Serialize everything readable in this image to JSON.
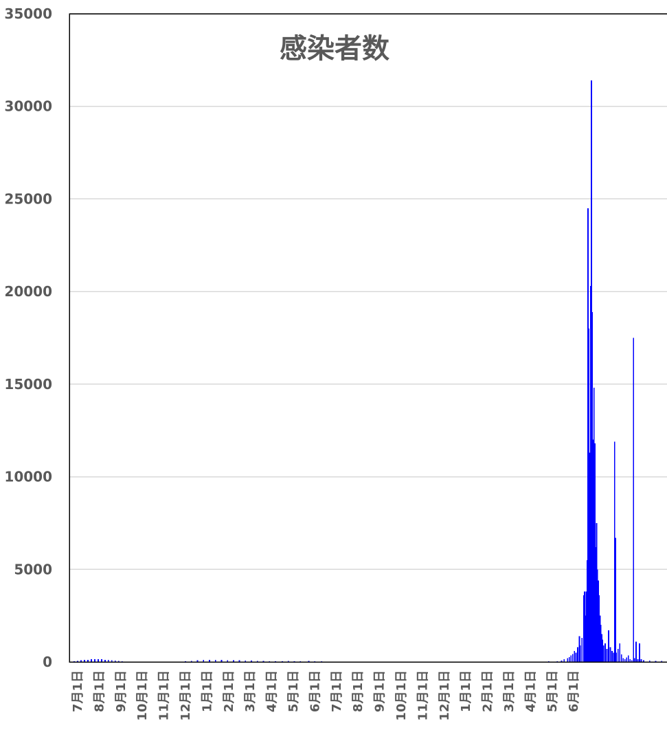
{
  "chart_data": {
    "type": "bar",
    "title": "感染者数",
    "xlabel": "",
    "ylabel": "",
    "ylim": [
      0,
      35000
    ],
    "grid": true,
    "legend": "none",
    "bar_color": "#0000ff",
    "gridline_color": "#d9d9d9",
    "text_color": "#595959",
    "y_ticks": [
      0,
      5000,
      10000,
      15000,
      20000,
      25000,
      30000,
      35000
    ],
    "y_tick_labels": [
      "0",
      "5000",
      "10000",
      "15000",
      "20000",
      "25000",
      "30000",
      "35000"
    ],
    "x_tick_labels": [
      "7月1日",
      "8月1日",
      "9月1日",
      "10月1日",
      "11月1日",
      "12月1日",
      "1月1日",
      "2月1日",
      "3月1日",
      "4月1日",
      "5月1日",
      "6月1日",
      "7月1日",
      "8月1日",
      "9月1日",
      "10月1日",
      "11月1日",
      "12月1日",
      "1月1日",
      "2月1日",
      "3月1日",
      "4月1日",
      "5月1日",
      "6月1日"
    ],
    "x_start": "2020-07-01",
    "x_end": "2022-06-10",
    "series": [
      {
        "points": [
          [
            "2020-07-01",
            20
          ],
          [
            "2020-07-05",
            40
          ],
          [
            "2020-07-09",
            60
          ],
          [
            "2020-07-13",
            90
          ],
          [
            "2020-07-17",
            110
          ],
          [
            "2020-07-21",
            120
          ],
          [
            "2020-07-25",
            140
          ],
          [
            "2020-07-29",
            150
          ],
          [
            "2020-08-02",
            150
          ],
          [
            "2020-08-06",
            140
          ],
          [
            "2020-08-10",
            120
          ],
          [
            "2020-08-14",
            110
          ],
          [
            "2020-08-18",
            90
          ],
          [
            "2020-08-22",
            70
          ],
          [
            "2020-08-26",
            50
          ],
          [
            "2020-08-30",
            40
          ],
          [
            "2020-09-05",
            25
          ],
          [
            "2020-09-15",
            20
          ],
          [
            "2020-09-25",
            15
          ],
          [
            "2020-10-05",
            15
          ],
          [
            "2020-10-15",
            10
          ],
          [
            "2020-10-25",
            10
          ],
          [
            "2020-11-05",
            15
          ],
          [
            "2020-11-12",
            30
          ],
          [
            "2020-11-19",
            60
          ],
          [
            "2020-11-26",
            90
          ],
          [
            "2020-12-03",
            110
          ],
          [
            "2020-12-10",
            120
          ],
          [
            "2020-12-17",
            120
          ],
          [
            "2020-12-24",
            110
          ],
          [
            "2020-12-31",
            100
          ],
          [
            "2021-01-07",
            100
          ],
          [
            "2021-01-14",
            90
          ],
          [
            "2021-01-21",
            80
          ],
          [
            "2021-01-28",
            70
          ],
          [
            "2021-02-04",
            60
          ],
          [
            "2021-02-11",
            50
          ],
          [
            "2021-02-18",
            40
          ],
          [
            "2021-02-25",
            30
          ],
          [
            "2021-03-05",
            40
          ],
          [
            "2021-03-12",
            50
          ],
          [
            "2021-03-19",
            45
          ],
          [
            "2021-03-26",
            30
          ],
          [
            "2021-04-05",
            50
          ],
          [
            "2021-04-12",
            40
          ],
          [
            "2021-04-20",
            30
          ],
          [
            "2021-05-01",
            15
          ],
          [
            "2021-05-15",
            10
          ],
          [
            "2021-06-01",
            5
          ],
          [
            "2021-07-01",
            5
          ],
          [
            "2021-08-01",
            5
          ],
          [
            "2021-09-01",
            5
          ],
          [
            "2021-10-01",
            0
          ],
          [
            "2021-11-01",
            0
          ],
          [
            "2021-12-01",
            5
          ],
          [
            "2021-12-20",
            10
          ],
          [
            "2022-01-01",
            15
          ],
          [
            "2022-01-10",
            40
          ],
          [
            "2022-01-20",
            30
          ],
          [
            "2022-01-25",
            80
          ],
          [
            "2022-01-28",
            150
          ],
          [
            "2022-02-01",
            200
          ],
          [
            "2022-02-03",
            260
          ],
          [
            "2022-02-05",
            350
          ],
          [
            "2022-02-07",
            420
          ],
          [
            "2022-02-09",
            600
          ],
          [
            "2022-02-11",
            500
          ],
          [
            "2022-02-13",
            800
          ],
          [
            "2022-02-15",
            1400
          ],
          [
            "2022-02-16",
            900
          ],
          [
            "2022-02-18",
            1300
          ],
          [
            "2022-02-20",
            3600
          ],
          [
            "2022-02-21",
            3800
          ],
          [
            "2022-02-22",
            2500
          ],
          [
            "2022-02-23",
            3800
          ],
          [
            "2022-02-24",
            5500
          ],
          [
            "2022-02-25",
            24500
          ],
          [
            "2022-02-26",
            18000
          ],
          [
            "2022-02-27",
            11300
          ],
          [
            "2022-02-28",
            20300
          ],
          [
            "2022-03-01",
            31400
          ],
          [
            "2022-03-02",
            18900
          ],
          [
            "2022-03-03",
            12000
          ],
          [
            "2022-03-04",
            14800
          ],
          [
            "2022-03-05",
            11800
          ],
          [
            "2022-03-06",
            6200
          ],
          [
            "2022-03-07",
            7500
          ],
          [
            "2022-03-08",
            5000
          ],
          [
            "2022-03-09",
            4400
          ],
          [
            "2022-03-10",
            3600
          ],
          [
            "2022-03-11",
            2500
          ],
          [
            "2022-03-12",
            2000
          ],
          [
            "2022-03-13",
            1500
          ],
          [
            "2022-03-14",
            1200
          ],
          [
            "2022-03-15",
            900
          ],
          [
            "2022-03-17",
            1000
          ],
          [
            "2022-03-19",
            700
          ],
          [
            "2022-03-21",
            1700
          ],
          [
            "2022-03-23",
            800
          ],
          [
            "2022-03-25",
            600
          ],
          [
            "2022-03-27",
            500
          ],
          [
            "2022-03-28",
            11900
          ],
          [
            "2022-03-29",
            6700
          ],
          [
            "2022-03-30",
            500
          ],
          [
            "2022-04-01",
            700
          ],
          [
            "2022-04-03",
            1000
          ],
          [
            "2022-04-05",
            400
          ],
          [
            "2022-04-07",
            200
          ],
          [
            "2022-04-09",
            150
          ],
          [
            "2022-04-11",
            250
          ],
          [
            "2022-04-13",
            350
          ],
          [
            "2022-04-15",
            150
          ],
          [
            "2022-04-17",
            100
          ],
          [
            "2022-04-19",
            17500
          ],
          [
            "2022-04-20",
            200
          ],
          [
            "2022-04-22",
            1100
          ],
          [
            "2022-04-24",
            150
          ],
          [
            "2022-04-26",
            1000
          ],
          [
            "2022-04-28",
            150
          ],
          [
            "2022-05-01",
            100
          ],
          [
            "2022-05-08",
            80
          ],
          [
            "2022-05-15",
            60
          ],
          [
            "2022-05-22",
            50
          ],
          [
            "2022-05-29",
            40
          ],
          [
            "2022-06-05",
            40
          ],
          [
            "2022-06-08",
            120
          ],
          [
            "2022-06-10",
            100
          ]
        ]
      }
    ]
  }
}
